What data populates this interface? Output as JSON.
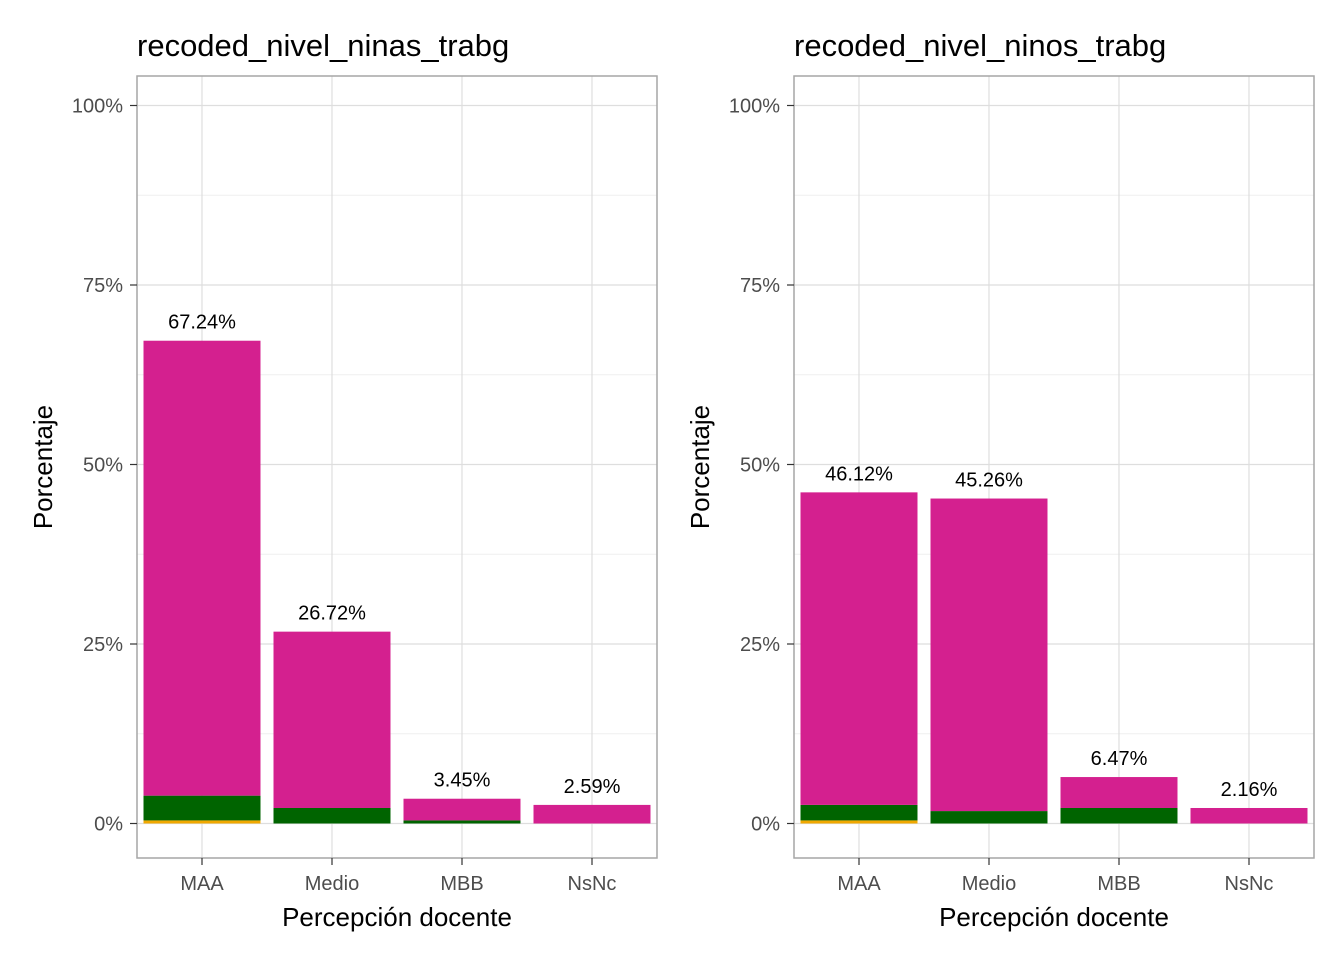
{
  "colors": {
    "main": "#d4208f",
    "secondary": "#006400",
    "tertiary": "#f0a800",
    "grid_major": "#dedede",
    "grid_minor": "#efefef",
    "panel_border": "#a6a6a6"
  },
  "chart_data": [
    {
      "type": "bar",
      "stacked": true,
      "title": "recoded_nivel_ninas_trabg",
      "xlabel": "Percepción docente",
      "ylabel": "Porcentaje",
      "ylim": [
        0,
        100
      ],
      "yticks": [
        "0%",
        "25%",
        "50%",
        "75%",
        "100%"
      ],
      "ytick_values": [
        0,
        25,
        50,
        75,
        100
      ],
      "grid": true,
      "categories": [
        "MAA",
        "Medio",
        "MBB",
        "NsNc"
      ],
      "series": [
        {
          "color": "#f0a800",
          "values": [
            0.43,
            0,
            0,
            0
          ]
        },
        {
          "color": "#006400",
          "values": [
            3.45,
            2.16,
            0.43,
            0
          ]
        },
        {
          "color": "#d4208f",
          "values": [
            63.36,
            24.56,
            3.02,
            2.59
          ]
        }
      ],
      "labels": [
        "67.24%",
        "26.72%",
        "3.45%",
        "2.59%"
      ],
      "totals": [
        67.24,
        26.72,
        3.45,
        2.59
      ]
    },
    {
      "type": "bar",
      "stacked": true,
      "title": "recoded_nivel_ninos_trabg",
      "xlabel": "Percepción docente",
      "ylabel": "Porcentaje",
      "ylim": [
        0,
        100
      ],
      "yticks": [
        "0%",
        "25%",
        "50%",
        "75%",
        "100%"
      ],
      "ytick_values": [
        0,
        25,
        50,
        75,
        100
      ],
      "grid": true,
      "categories": [
        "MAA",
        "Medio",
        "MBB",
        "NsNc"
      ],
      "series": [
        {
          "color": "#f0a800",
          "values": [
            0.43,
            0,
            0,
            0
          ]
        },
        {
          "color": "#006400",
          "values": [
            2.16,
            1.73,
            2.16,
            0
          ]
        },
        {
          "color": "#d4208f",
          "values": [
            43.53,
            43.53,
            4.31,
            2.16
          ]
        }
      ],
      "labels": [
        "46.12%",
        "45.26%",
        "6.47%",
        "2.16%"
      ],
      "totals": [
        46.12,
        45.26,
        6.47,
        2.16
      ]
    }
  ]
}
